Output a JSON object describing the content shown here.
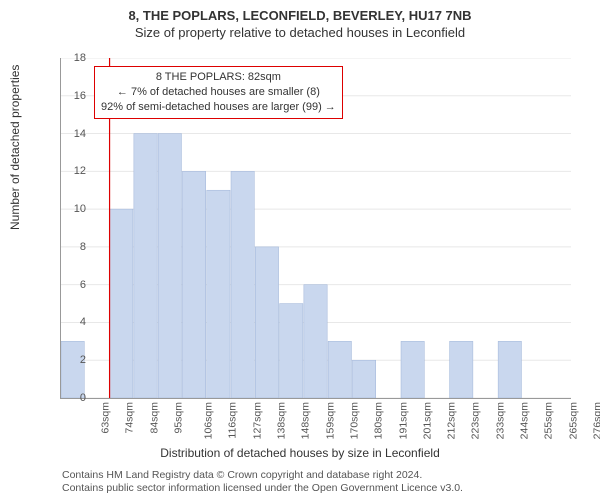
{
  "title": "8, THE POPLARS, LECONFIELD, BEVERLEY, HU17 7NB",
  "subtitle": "Size of property relative to detached houses in Leconfield",
  "y_axis_label": "Number of detached properties",
  "x_axis_label": "Distribution of detached houses by size in Leconfield",
  "attribution_line1": "Contains HM Land Registry data © Crown copyright and database right 2024.",
  "attribution_line2": "Contains public sector information licensed under the Open Government Licence v3.0.",
  "chart": {
    "type": "histogram",
    "ylim": [
      0,
      18
    ],
    "ytick_step": 2,
    "categories": [
      "63sqm",
      "74sqm",
      "84sqm",
      "95sqm",
      "106sqm",
      "116sqm",
      "127sqm",
      "138sqm",
      "148sqm",
      "159sqm",
      "170sqm",
      "180sqm",
      "191sqm",
      "201sqm",
      "212sqm",
      "223sqm",
      "233sqm",
      "244sqm",
      "255sqm",
      "265sqm",
      "276sqm"
    ],
    "values": [
      3,
      0,
      10,
      14,
      14,
      12,
      11,
      12,
      8,
      5,
      6,
      3,
      2,
      0,
      3,
      0,
      3,
      0,
      3,
      0,
      0
    ],
    "bar_fill": "#c9d7ee",
    "bar_stroke": "#9fb4d8",
    "grid_color": "#e8e8e8",
    "background": "#ffffff",
    "reference_line_index": 2.0,
    "reference_color": "#d00000"
  },
  "callout": {
    "line1": "8 THE POPLARS: 82sqm",
    "line2": "← 7% of detached houses are smaller (8)",
    "line3": "92% of semi-detached houses are larger (99) →"
  }
}
